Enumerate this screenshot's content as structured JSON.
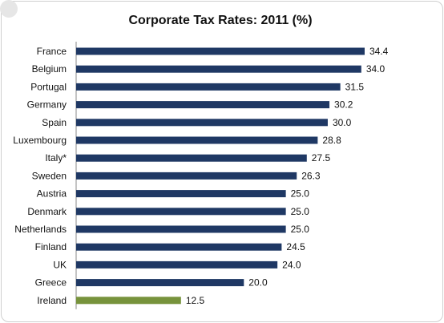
{
  "chart_data": {
    "type": "bar",
    "orientation": "horizontal",
    "title": "Corporate Tax Rates: 2011 (%)",
    "xlabel": "",
    "ylabel": "",
    "categories": [
      "France",
      "Belgium",
      "Portugal",
      "Germany",
      "Spain",
      "Luxembourg",
      "Italy*",
      "Sweden",
      "Austria",
      "Denmark",
      "Netherlands",
      "Finland",
      "UK",
      "Greece",
      "Ireland"
    ],
    "values": [
      34.4,
      34.0,
      31.5,
      30.2,
      30.0,
      28.8,
      27.5,
      26.3,
      25.0,
      25.0,
      25.0,
      24.5,
      24.0,
      20.0,
      12.5
    ],
    "value_labels": [
      "34.4",
      "34.0",
      "31.5",
      "30.2",
      "30.0",
      "28.8",
      "27.5",
      "26.3",
      "25.0",
      "25.0",
      "25.0",
      "24.5",
      "24.0",
      "20.0",
      "12.5"
    ],
    "xlim": [
      0,
      40
    ],
    "grid": false,
    "legend": "none",
    "colors": {
      "default_bar": "#1f3864",
      "highlight_bar": "#77933c",
      "axis": "#888888"
    },
    "highlight_category": "Ireland"
  }
}
